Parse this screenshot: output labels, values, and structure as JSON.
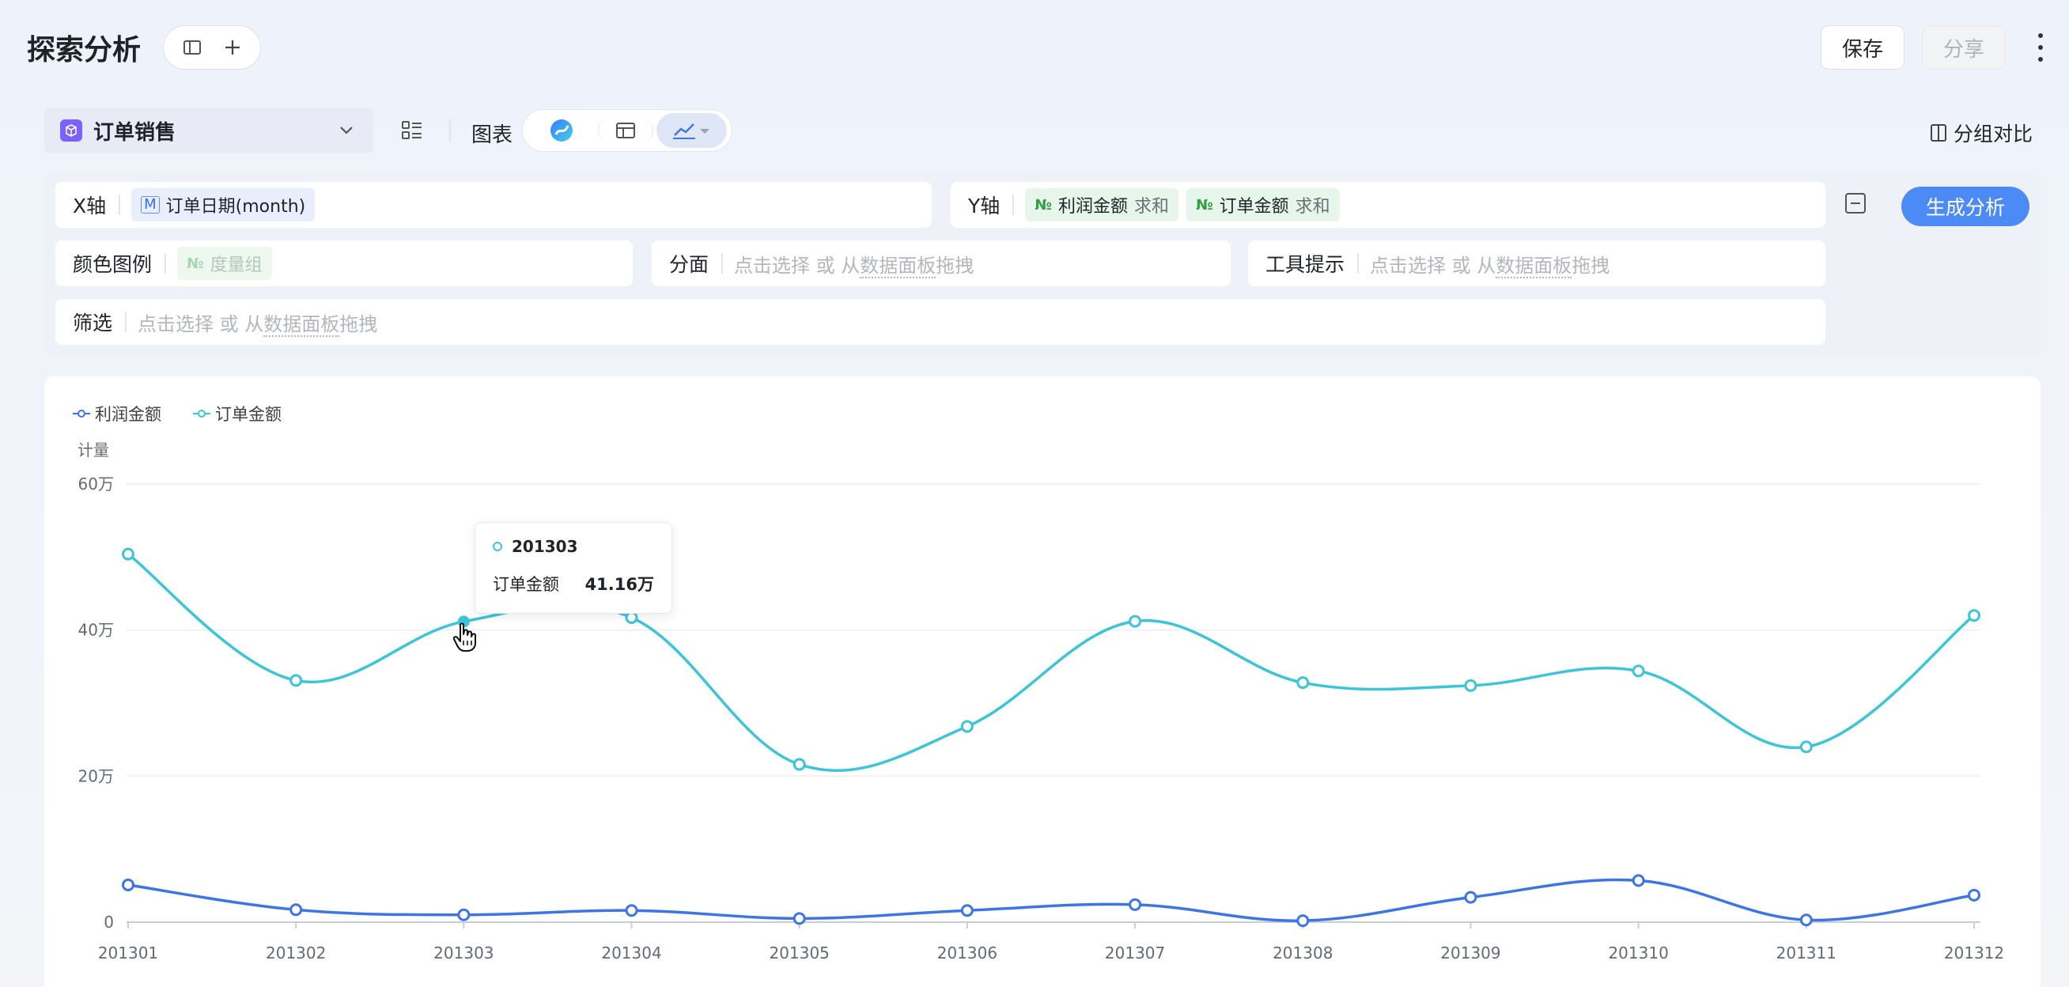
{
  "header": {
    "title": "探索分析",
    "save_label": "保存",
    "share_label": "分享",
    "sidebar_toggle_icon": "sidebar-panel-icon",
    "add_icon": "plus-icon",
    "more_icon": "more-vertical-icon"
  },
  "toolbar": {
    "dataset": "订单销售",
    "chart_label": "图表",
    "group_compare": "分组对比",
    "chart_types": [
      "ai-chart-icon",
      "table-icon",
      "line-chart-icon"
    ],
    "selected_chart_type": "line-chart-icon"
  },
  "config": {
    "x_axis": {
      "label": "X轴",
      "field": "订单日期(month)",
      "tag": "M"
    },
    "y_axis": {
      "label": "Y轴",
      "fields": [
        {
          "tag": "№",
          "name": "利润金额",
          "agg": "求和"
        },
        {
          "tag": "№",
          "name": "订单金额",
          "agg": "求和"
        }
      ]
    },
    "color_legend": {
      "label": "颜色图例",
      "field": "度量组",
      "tag": "№"
    },
    "facet": {
      "label": "分面",
      "placeholder_a": "点击选择 或 从",
      "placeholder_link": "数据面板",
      "placeholder_b": "拖拽"
    },
    "tooltip": {
      "label": "工具提示",
      "placeholder_a": "点击选择 或 从",
      "placeholder_link": "数据面板",
      "placeholder_b": "拖拽"
    },
    "filter": {
      "label": "筛选",
      "placeholder_a": "点击选择 或 从",
      "placeholder_link": "数据面板",
      "placeholder_b": "拖拽"
    },
    "generate_label": "生成分析"
  },
  "tooltip_popup": {
    "title": "201303",
    "metric": "订单金额",
    "value": "41.16万"
  },
  "colors": {
    "profit": "#3d74e6",
    "order": "#3cc5d6",
    "accent": "#4c8bf5"
  },
  "chart_data": {
    "type": "line",
    "ylabel": "计量",
    "ytick_labels": [
      "0",
      "20万",
      "40万",
      "60万"
    ],
    "ylim": [
      0,
      600000
    ],
    "yticks": [
      0,
      200000,
      400000,
      600000
    ],
    "legend_position": "top-left",
    "grid": true,
    "categories": [
      "201301",
      "201302",
      "201303",
      "201304",
      "201305",
      "201306",
      "201307",
      "201308",
      "201309",
      "201310",
      "201311",
      "201312"
    ],
    "series": [
      {
        "name": "利润金额",
        "color": "#3d74e6",
        "values": [
          51000,
          17000,
          10000,
          16000,
          5000,
          16000,
          24000,
          2000,
          34000,
          57000,
          3000,
          37000
        ]
      },
      {
        "name": "订单金额",
        "color": "#3cc5d6",
        "values": [
          504000,
          331000,
          411600,
          417000,
          216000,
          268000,
          412000,
          328000,
          324000,
          344000,
          240000,
          420000
        ]
      }
    ]
  }
}
